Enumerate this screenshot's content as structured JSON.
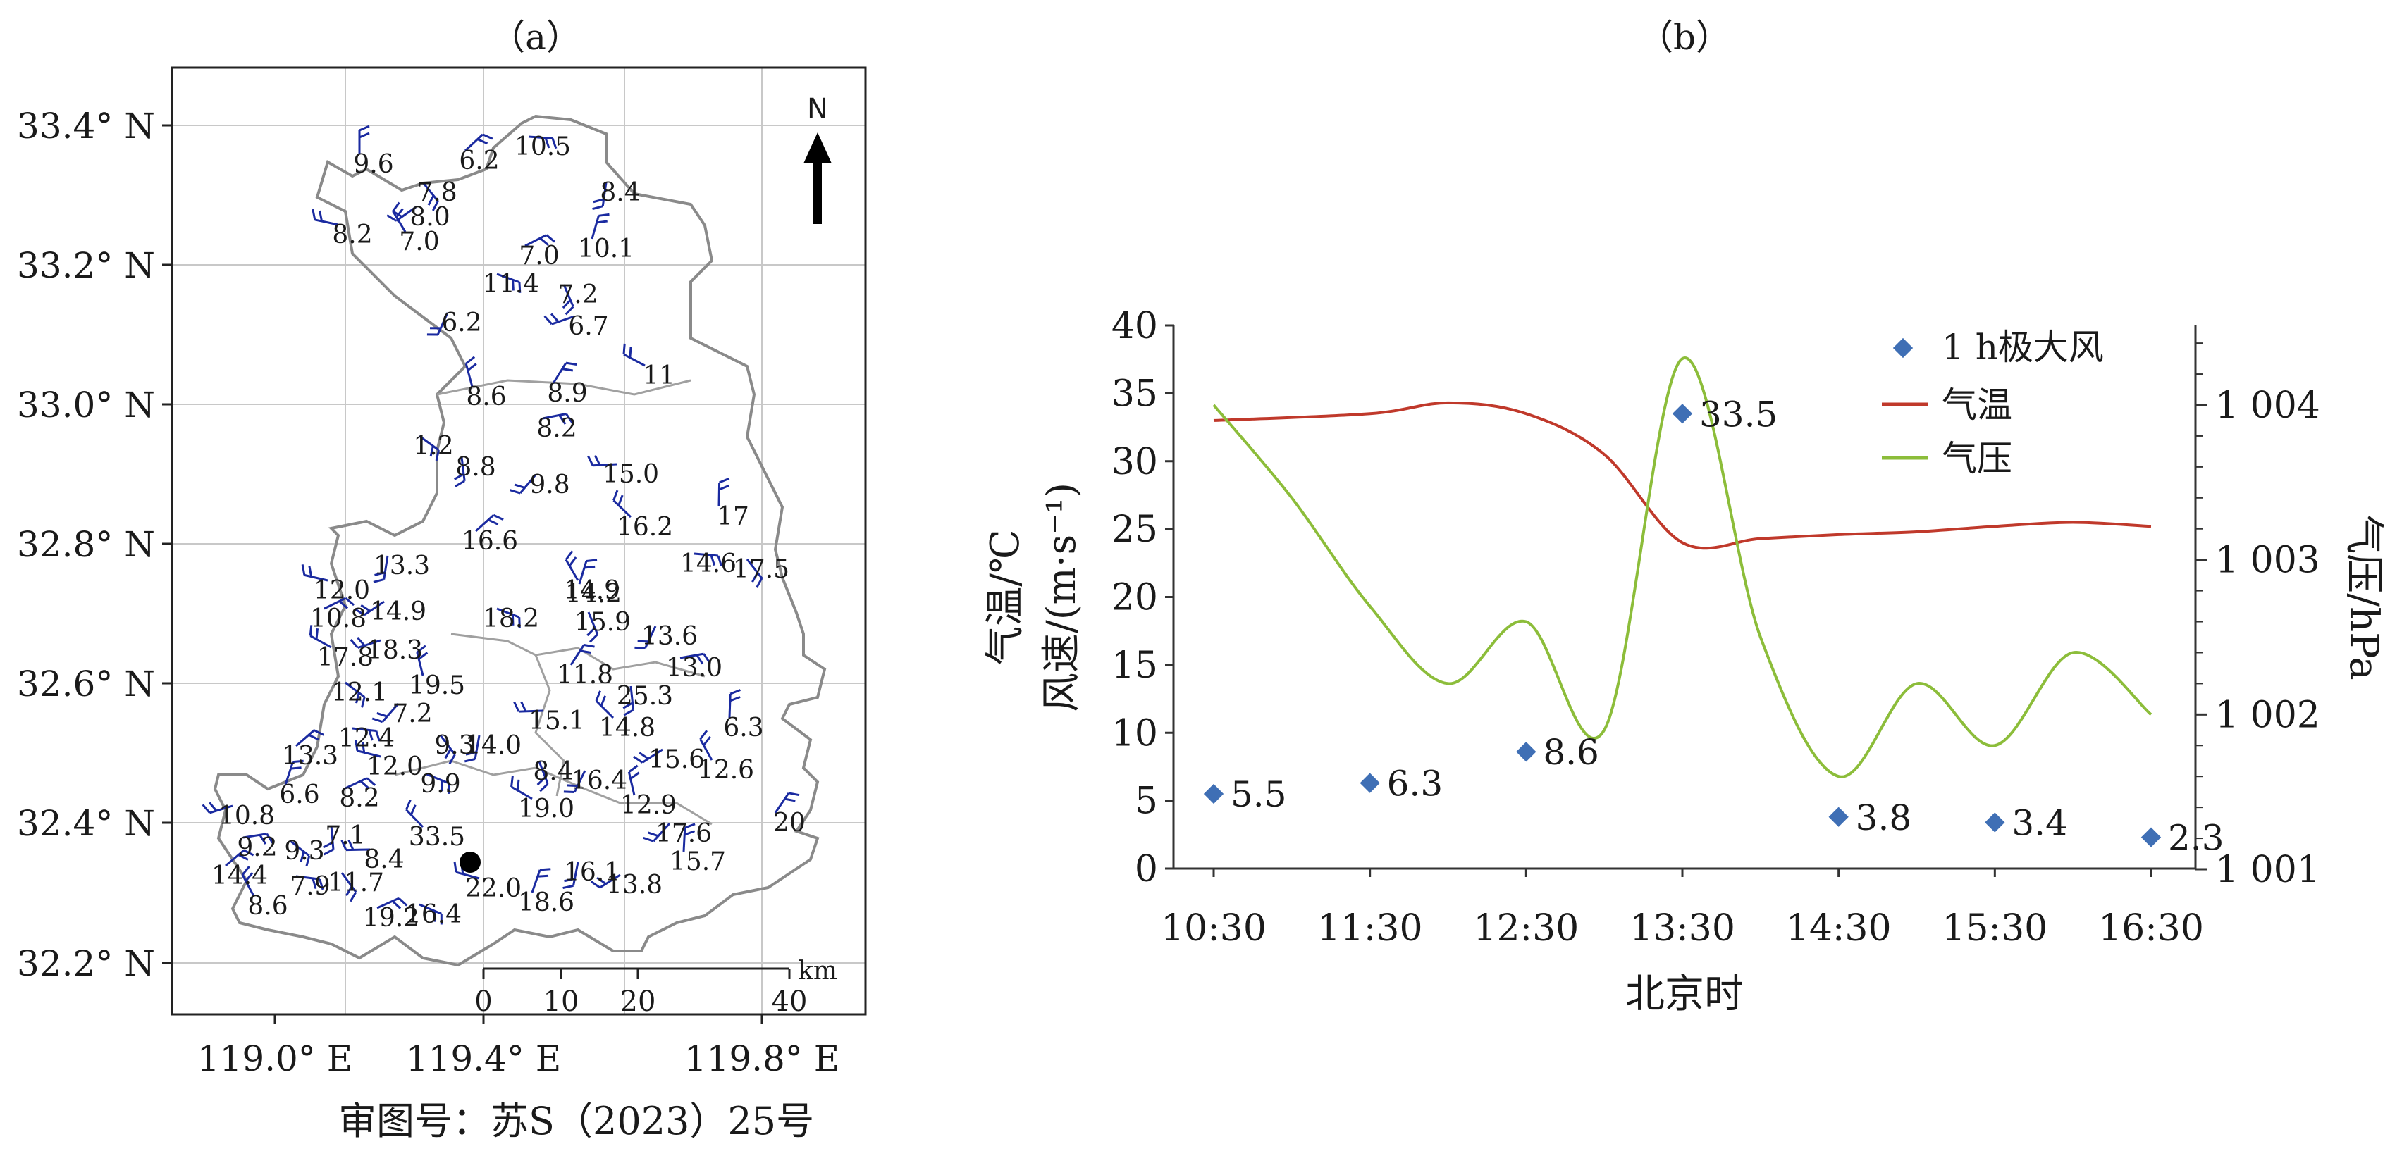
{
  "panel_a": {
    "label": "（a）",
    "lat_ticks": [
      "33.4° N",
      "33.2° N",
      "33.0° N",
      "32.8° N",
      "32.6° N",
      "32.4° N",
      "32.2° N"
    ],
    "lon_ticks": [
      "119.0° E",
      "119.4° E",
      "119.8° E"
    ],
    "north_label": "N",
    "scale": {
      "unit": "km",
      "ticks": [
        "0",
        "10",
        "20",
        "40"
      ]
    },
    "caption": "审图号：苏S（2023）25号",
    "stations": [
      "9.6",
      "6.2",
      "10.5",
      "7.8",
      "8.4",
      "8.0",
      "8.2",
      "7.0",
      "10.1",
      "7.0",
      "11.4",
      "7.2",
      "6.2",
      "6.7",
      "11",
      "8.6",
      "8.9",
      "8.2",
      "1.2",
      "8.8",
      "9.8",
      "15.0",
      "16.2",
      "17",
      "16.6",
      "14.6",
      "17.5",
      "13.3",
      "14.9",
      "12.0",
      "14.9",
      "14.2",
      "10.8",
      "18.2",
      "15.9",
      "13.6",
      "18.3",
      "17.8",
      "19.5",
      "11.8",
      "13.0",
      "12.1",
      "25.3",
      "7.2",
      "15.1",
      "14.8",
      "6.3",
      "13.3",
      "12.4",
      "9.3",
      "14.0",
      "15.6",
      "12.0",
      "12.6",
      "6.6",
      "8.2",
      "9.9",
      "8.4",
      "16.4",
      "10.8",
      "19.0",
      "12.9",
      "20",
      "9.2",
      "9.3",
      "7.1",
      "17.6",
      "8.4",
      "33.5",
      "15.7",
      "14.4",
      "7.9",
      "11.7",
      "16.1",
      "13.8",
      "22.0",
      "8.6",
      "18.6",
      "19.2",
      "16.4"
    ]
  },
  "panel_b": {
    "label": "（b）",
    "xlabel": "北京时",
    "ylabel_left_1": "气温/℃",
    "ylabel_left_2": "风速/(m·s⁻¹)",
    "ylabel_right": "气压/hPa",
    "legend": [
      "1 h极大风",
      "气温",
      "气压"
    ]
  },
  "colors": {
    "wind_barb": "#1a2aa0",
    "gust": "#3f6fb5",
    "temperature": "#c0392b",
    "pressure": "#8cbd3a",
    "grid": "#c8c8c8",
    "boundary": "#8a8a8a"
  },
  "chart_data": {
    "type": "line",
    "x": [
      "10:30",
      "11:30",
      "12:30",
      "13:30",
      "14:30",
      "15:30",
      "16:30"
    ],
    "xlabel": "北京时",
    "ylabel": "气温/℃ 风速/(m·s⁻¹)",
    "ylim": [
      0,
      40
    ],
    "yticks": [
      0,
      5,
      10,
      15,
      20,
      25,
      30,
      35,
      40
    ],
    "y2label": "气压/hPa",
    "y2lim": [
      1001,
      1004.5
    ],
    "y2ticks": [
      "1 001",
      "1 002",
      "1 003",
      "1 004"
    ],
    "legend_position": "top-right",
    "series": [
      {
        "name": "1 h极大风",
        "kind": "scatter",
        "axis": "left",
        "points": [
          {
            "t": "10:30",
            "v": 5.5
          },
          {
            "t": "11:30",
            "v": 6.3
          },
          {
            "t": "12:30",
            "v": 8.6
          },
          {
            "t": "13:30",
            "v": 33.5
          },
          {
            "t": "14:30",
            "v": 3.8
          },
          {
            "t": "15:30",
            "v": 3.4
          },
          {
            "t": "16:30",
            "v": 2.3
          }
        ],
        "labels": [
          "5.5",
          "6.3",
          "8.6",
          "33.5",
          "3.8",
          "3.4",
          "2.3"
        ]
      },
      {
        "name": "气温",
        "kind": "line",
        "axis": "left",
        "points": [
          {
            "t": "10:30",
            "v": 33
          },
          {
            "t": "11:30",
            "v": 33.5
          },
          {
            "t": "12:00",
            "v": 34.3
          },
          {
            "t": "12:30",
            "v": 33.5
          },
          {
            "t": "13:00",
            "v": 30.5
          },
          {
            "t": "13:30",
            "v": 24
          },
          {
            "t": "14:00",
            "v": 24.3
          },
          {
            "t": "14:30",
            "v": 24.6
          },
          {
            "t": "15:00",
            "v": 24.8
          },
          {
            "t": "15:30",
            "v": 25.2
          },
          {
            "t": "16:00",
            "v": 25.5
          },
          {
            "t": "16:30",
            "v": 25.2
          }
        ]
      },
      {
        "name": "气压",
        "kind": "line",
        "axis": "right",
        "points": [
          {
            "t": "10:30",
            "v": 1004
          },
          {
            "t": "11:00",
            "v": 1003.4
          },
          {
            "t": "11:30",
            "v": 1002.7
          },
          {
            "t": "12:00",
            "v": 1002.2
          },
          {
            "t": "12:30",
            "v": 1002.6
          },
          {
            "t": "13:00",
            "v": 1001.9
          },
          {
            "t": "13:30",
            "v": 1004.3
          },
          {
            "t": "14:00",
            "v": 1002.5
          },
          {
            "t": "14:30",
            "v": 1001.6
          },
          {
            "t": "15:00",
            "v": 1002.2
          },
          {
            "t": "15:30",
            "v": 1001.8
          },
          {
            "t": "16:00",
            "v": 1002.4
          },
          {
            "t": "16:30",
            "v": 1002
          }
        ]
      }
    ]
  }
}
